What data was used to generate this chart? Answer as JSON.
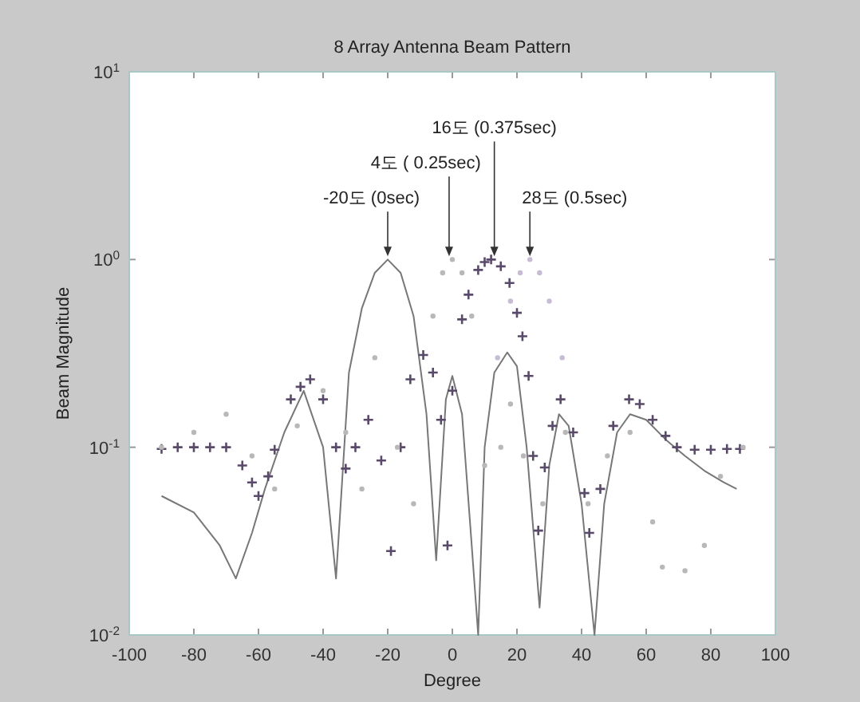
{
  "chart_data": {
    "type": "line",
    "title": "8 Array Antenna Beam Pattern",
    "xlabel": "Degree",
    "ylabel": "Beam Magnitude",
    "log": "y",
    "grid": false,
    "xlim": [
      -100,
      100
    ],
    "ylim": [
      0.01,
      10
    ],
    "xticks": [
      -100,
      -80,
      -60,
      -40,
      -20,
      0,
      20,
      40,
      60,
      80,
      100
    ],
    "yticks": [
      {
        "value": 0.01,
        "label": "10$^{-2}$"
      },
      {
        "value": 0.1,
        "label": "10$^{-1}$"
      },
      {
        "value": 1,
        "label": "10$^{0}$"
      },
      {
        "value": 10,
        "label": "10$^{1}$"
      }
    ],
    "series": [
      {
        "type": "line",
        "color": "#777777",
        "line_style": "solid",
        "marker": "none",
        "x": [
          -90,
          -80,
          -72,
          -67,
          -62,
          -58,
          -52,
          -46,
          -40,
          -36,
          -32,
          -28,
          -24,
          -20,
          -16,
          -12,
          -8,
          -5,
          -2,
          0,
          3,
          6,
          8,
          10,
          13,
          17,
          20,
          23,
          27,
          30,
          33,
          36,
          40,
          44,
          47,
          51,
          55,
          60,
          66,
          72,
          78,
          84,
          88
        ],
        "values": [
          0.055,
          0.045,
          0.03,
          0.02,
          0.035,
          0.06,
          0.12,
          0.2,
          0.1,
          0.02,
          0.25,
          0.55,
          0.85,
          1.0,
          0.85,
          0.5,
          0.15,
          0.025,
          0.18,
          0.24,
          0.15,
          0.03,
          0.01,
          0.1,
          0.25,
          0.32,
          0.27,
          0.1,
          0.014,
          0.08,
          0.15,
          0.13,
          0.05,
          0.01,
          0.05,
          0.12,
          0.15,
          0.14,
          0.11,
          0.09,
          0.075,
          0.065,
          0.06
        ]
      },
      {
        "type": "scatter",
        "color": "#5a4a6a",
        "marker": "cross",
        "x": [
          -90,
          -85,
          -80,
          -75,
          -70,
          -65,
          -62,
          -60,
          -57,
          -55,
          -50,
          -47,
          -44,
          -40,
          -36,
          -33,
          -30,
          -26,
          -22,
          -19,
          -16,
          -13,
          -9,
          -6,
          -3.5,
          -1.5,
          0,
          3,
          5,
          8,
          10,
          12,
          15,
          17.7,
          20,
          21.7,
          23.6,
          25,
          26.6,
          28.6,
          31,
          33.5,
          37.4,
          40.9,
          42.4,
          45.8,
          49.8,
          54.7,
          58,
          62,
          66,
          69.5,
          75,
          80,
          85,
          89
        ],
        "values": [
          0.098,
          0.1,
          0.1,
          0.1,
          0.1,
          0.08,
          0.065,
          0.055,
          0.07,
          0.097,
          0.18,
          0.21,
          0.23,
          0.18,
          0.1,
          0.077,
          0.1,
          0.14,
          0.085,
          0.028,
          0.1,
          0.23,
          0.31,
          0.25,
          0.14,
          0.03,
          0.2,
          0.48,
          0.65,
          0.88,
          0.97,
          1.0,
          0.92,
          0.75,
          0.52,
          0.39,
          0.24,
          0.09,
          0.036,
          0.078,
          0.13,
          0.18,
          0.12,
          0.057,
          0.035,
          0.06,
          0.13,
          0.18,
          0.17,
          0.14,
          0.115,
          0.1,
          0.097,
          0.097,
          0.098,
          0.098
        ]
      },
      {
        "type": "scatter",
        "color": "#b8b8b8",
        "marker": "circle",
        "x": [
          -90,
          -80,
          -70,
          -62,
          -55,
          -48,
          -40,
          -33,
          -28,
          -24,
          -17,
          -12,
          -6,
          -3,
          0,
          3,
          6,
          10,
          15,
          18,
          22,
          28,
          35,
          42,
          48,
          55,
          62,
          65,
          72,
          78,
          83,
          90
        ],
        "values": [
          0.1,
          0.12,
          0.15,
          0.09,
          0.06,
          0.13,
          0.2,
          0.12,
          0.06,
          0.3,
          0.1,
          0.05,
          0.5,
          0.85,
          1.0,
          0.85,
          0.5,
          0.08,
          0.1,
          0.17,
          0.09,
          0.05,
          0.12,
          0.05,
          0.09,
          0.12,
          0.04,
          0.023,
          0.022,
          0.03,
          0.07,
          0.1
        ]
      },
      {
        "type": "scatter",
        "color": "#c8bcd4",
        "marker": "circle",
        "x": [
          14,
          18,
          21,
          24,
          27,
          30,
          34
        ],
        "values": [
          0.3,
          0.6,
          0.85,
          1.0,
          0.85,
          0.6,
          0.3
        ]
      }
    ],
    "annotations": [
      {
        "text": "-20도 (0sec)",
        "x": -20,
        "y": 1
      },
      {
        "text": "4도 ( 0.25sec)",
        "x": -1,
        "y": 1
      },
      {
        "text": "16도 (0.375sec)",
        "x": 13,
        "y": 1
      },
      {
        "text": "28도 (0.5sec)",
        "x": 24,
        "y": 1
      }
    ]
  }
}
